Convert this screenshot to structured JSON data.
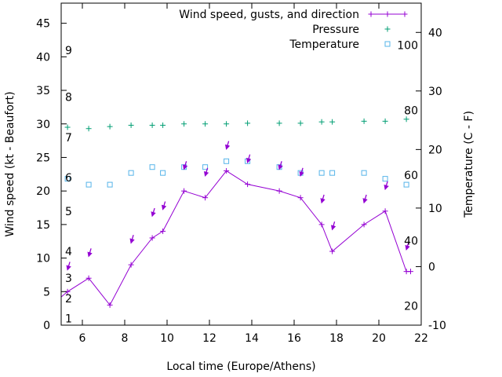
{
  "chart_data": {
    "type": "line",
    "xlabel": "Local time (Europe/Athens)",
    "ylabel": "Wind speed (kt - Beaufort)",
    "y2label": "Temperature (C - F)",
    "xlim": [
      5,
      22
    ],
    "ylim": [
      0,
      48
    ],
    "y2lim": [
      -10,
      45
    ],
    "x_ticks": [
      "6",
      "8",
      "10",
      "12",
      "14",
      "16",
      "18",
      "20",
      "22"
    ],
    "y_ticks": [
      "0",
      "5",
      "10",
      "15",
      "20",
      "25",
      "30",
      "35",
      "40",
      "45"
    ],
    "y2_ticks": [
      "-10",
      "0",
      "10",
      "20",
      "30",
      "40"
    ],
    "beaufort_labels": [
      {
        "text": "1",
        "wind": 1
      },
      {
        "text": "2",
        "wind": 4
      },
      {
        "text": "3",
        "wind": 7
      },
      {
        "text": "4",
        "wind": 11
      },
      {
        "text": "5",
        "wind": 17
      },
      {
        "text": "6",
        "wind": 22
      },
      {
        "text": "7",
        "wind": 28
      },
      {
        "text": "8",
        "wind": 34
      },
      {
        "text": "9",
        "wind": 41
      }
    ],
    "fahrenheit_labels": [
      {
        "text": "20",
        "temp_c": -6.7
      },
      {
        "text": "40",
        "temp_c": 4.4
      },
      {
        "text": "60",
        "temp_c": 15.6
      },
      {
        "text": "80",
        "temp_c": 26.7
      },
      {
        "text": "100",
        "temp_c": 37.8
      }
    ],
    "colors": {
      "wind": "#9400d3",
      "pressure": "#009e73",
      "temperature": "#56b4e9"
    },
    "series": [
      {
        "name": "Wind speed, gusts, and direction",
        "axis": "y",
        "style": "line-points",
        "x": [
          4.9,
          5.3,
          6.3,
          7.3,
          8.3,
          9.3,
          9.8,
          10.8,
          11.8,
          12.8,
          13.8,
          15.3,
          16.3,
          17.3,
          17.8,
          19.3,
          20.3,
          21.3,
          21.5
        ],
        "values": [
          4.2,
          5,
          7,
          3,
          9,
          13,
          14,
          20,
          19,
          23,
          21,
          20,
          19,
          15,
          11,
          15,
          17,
          8,
          8
        ]
      },
      {
        "name": "Pressure",
        "axis": "y",
        "style": "points",
        "x": [
          5.3,
          6.3,
          7.3,
          8.3,
          9.3,
          9.8,
          10.8,
          11.8,
          12.8,
          13.8,
          15.3,
          16.3,
          17.3,
          17.8,
          19.3,
          20.3,
          21.3
        ],
        "values": [
          29.5,
          29.3,
          29.6,
          29.8,
          29.8,
          29.8,
          30.0,
          30.0,
          30.0,
          30.1,
          30.1,
          30.1,
          30.3,
          30.3,
          30.4,
          30.4,
          30.7
        ]
      },
      {
        "name": "Temperature",
        "axis": "y2",
        "style": "points",
        "x": [
          5.3,
          6.3,
          7.3,
          8.3,
          9.3,
          9.8,
          10.8,
          11.8,
          12.8,
          13.8,
          15.3,
          16.3,
          17.3,
          17.8,
          19.3,
          20.3,
          21.3
        ],
        "values": [
          15,
          14,
          14,
          16,
          17,
          16,
          17,
          17,
          18,
          18,
          17,
          16,
          16,
          16,
          16,
          15,
          14
        ]
      }
    ],
    "wind_barbs": {
      "x": [
        5.3,
        6.3,
        8.3,
        9.3,
        9.8,
        10.8,
        11.8,
        12.8,
        13.8,
        15.3,
        16.3,
        17.3,
        17.8,
        19.3,
        20.3,
        21.3
      ],
      "gust": [
        8.5,
        10.5,
        12.5,
        16.5,
        17.5,
        23.5,
        22.5,
        26.5,
        24.5,
        23.5,
        22.5,
        18.5,
        14.5,
        18.5,
        20.5,
        11.5
      ]
    }
  }
}
